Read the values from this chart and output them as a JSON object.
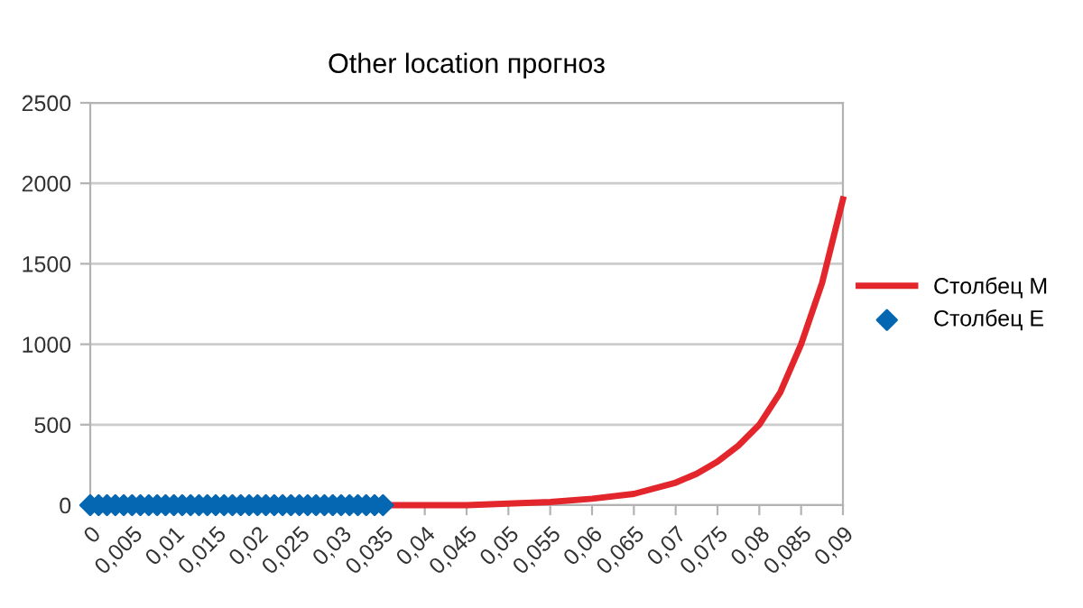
{
  "chart_data": {
    "type": "line",
    "title": "Other location прогноз",
    "series": [
      {
        "name": "Столбец M",
        "color": "#e3262b",
        "marker": "none",
        "line_style": "solid",
        "x": [
          0.035,
          0.04,
          0.045,
          0.05,
          0.055,
          0.06,
          0.065,
          0.07,
          0.0725,
          0.075,
          0.0775,
          0.08,
          0.0825,
          0.085,
          0.0875,
          0.09
        ],
        "values": [
          0,
          0,
          0,
          10,
          20,
          40,
          70,
          140,
          195,
          270,
          370,
          500,
          700,
          1000,
          1380,
          1900
        ]
      },
      {
        "name": "Столбец E",
        "type": "scatter",
        "color": "#0567b2",
        "marker": "diamond",
        "x": [
          0,
          0.001,
          0.002,
          0.003,
          0.004,
          0.005,
          0.006,
          0.007,
          0.008,
          0.009,
          0.01,
          0.011,
          0.012,
          0.013,
          0.014,
          0.015,
          0.016,
          0.017,
          0.018,
          0.019,
          0.02,
          0.021,
          0.022,
          0.023,
          0.024,
          0.025,
          0.026,
          0.027,
          0.028,
          0.029,
          0.03,
          0.031,
          0.032,
          0.033,
          0.034,
          0.035
        ],
        "values": [
          0,
          0,
          0,
          0,
          0,
          0,
          0,
          0,
          0,
          0,
          0,
          0,
          0,
          0,
          0,
          0,
          0,
          0,
          0,
          0,
          0,
          0,
          0,
          0,
          0,
          0,
          0,
          0,
          0,
          0,
          0,
          0,
          0,
          0,
          0,
          0
        ]
      }
    ],
    "xlim": [
      0,
      0.09
    ],
    "xticks": [
      0,
      {
        "value": 0.005,
        "label": "0,005"
      },
      {
        "value": 0.01,
        "label": "0,01"
      },
      {
        "value": 0.015,
        "label": "0,015"
      },
      {
        "value": 0.02,
        "label": "0,02"
      },
      {
        "value": 0.025,
        "label": "0,025"
      },
      {
        "value": 0.03,
        "label": "0,03"
      },
      {
        "value": 0.035,
        "label": "0,035"
      },
      {
        "value": 0.04,
        "label": "0,04"
      },
      {
        "value": 0.045,
        "label": "0,045"
      },
      {
        "value": 0.05,
        "label": "0,05"
      },
      {
        "value": 0.055,
        "label": "0,055"
      },
      {
        "value": 0.06,
        "label": "0,06"
      },
      {
        "value": 0.065,
        "label": "0,065"
      },
      {
        "value": 0.07,
        "label": "0,07"
      },
      {
        "value": 0.075,
        "label": "0,075"
      },
      {
        "value": 0.08,
        "label": "0,08"
      },
      {
        "value": 0.085,
        "label": "0,085"
      },
      {
        "value": 0.09,
        "label": "0,09"
      }
    ],
    "ylim": [
      0,
      2500
    ],
    "yticks": [
      0,
      500,
      1000,
      1500,
      2000,
      2500
    ],
    "grid": "y",
    "legend": "right"
  }
}
